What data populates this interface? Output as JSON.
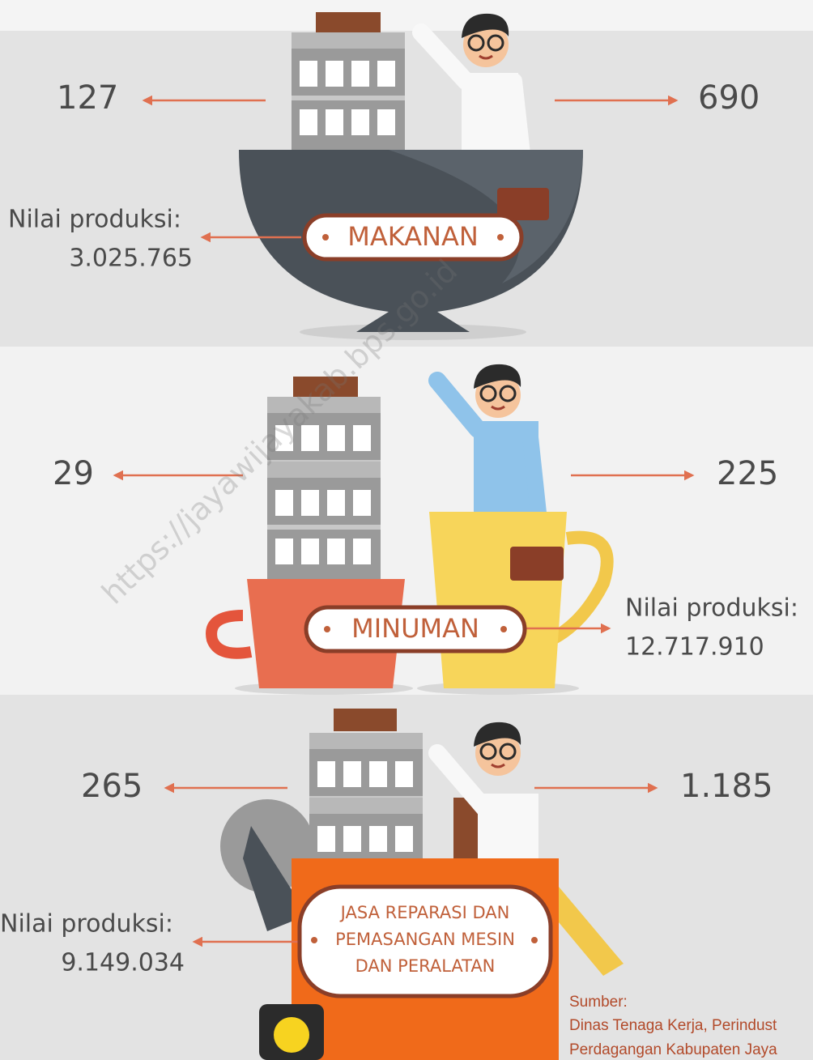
{
  "sections": [
    {
      "left_value": "127",
      "right_value": "690",
      "label": [
        "MAKANAN"
      ],
      "production_label": "Nilai produksi:",
      "production_value": "3.025.765"
    },
    {
      "left_value": "29",
      "right_value": "225",
      "label": [
        "MINUMAN"
      ],
      "production_label": "Nilai produksi:",
      "production_value": "12.717.910"
    },
    {
      "left_value": "265",
      "right_value": "1.185",
      "label": [
        "JASA REPARASI DAN",
        "PEMASANGAN MESIN",
        "DAN PERALATAN"
      ],
      "production_label": "Nilai produksi:",
      "production_value": "9.149.034"
    }
  ],
  "source": {
    "title": "Sumber:",
    "lines": [
      "Dinas Tenaga Kerja, Perindust",
      "Perdagangan Kabupaten Jaya"
    ]
  },
  "watermark": "https://jayawijayakab.bps.go.id"
}
